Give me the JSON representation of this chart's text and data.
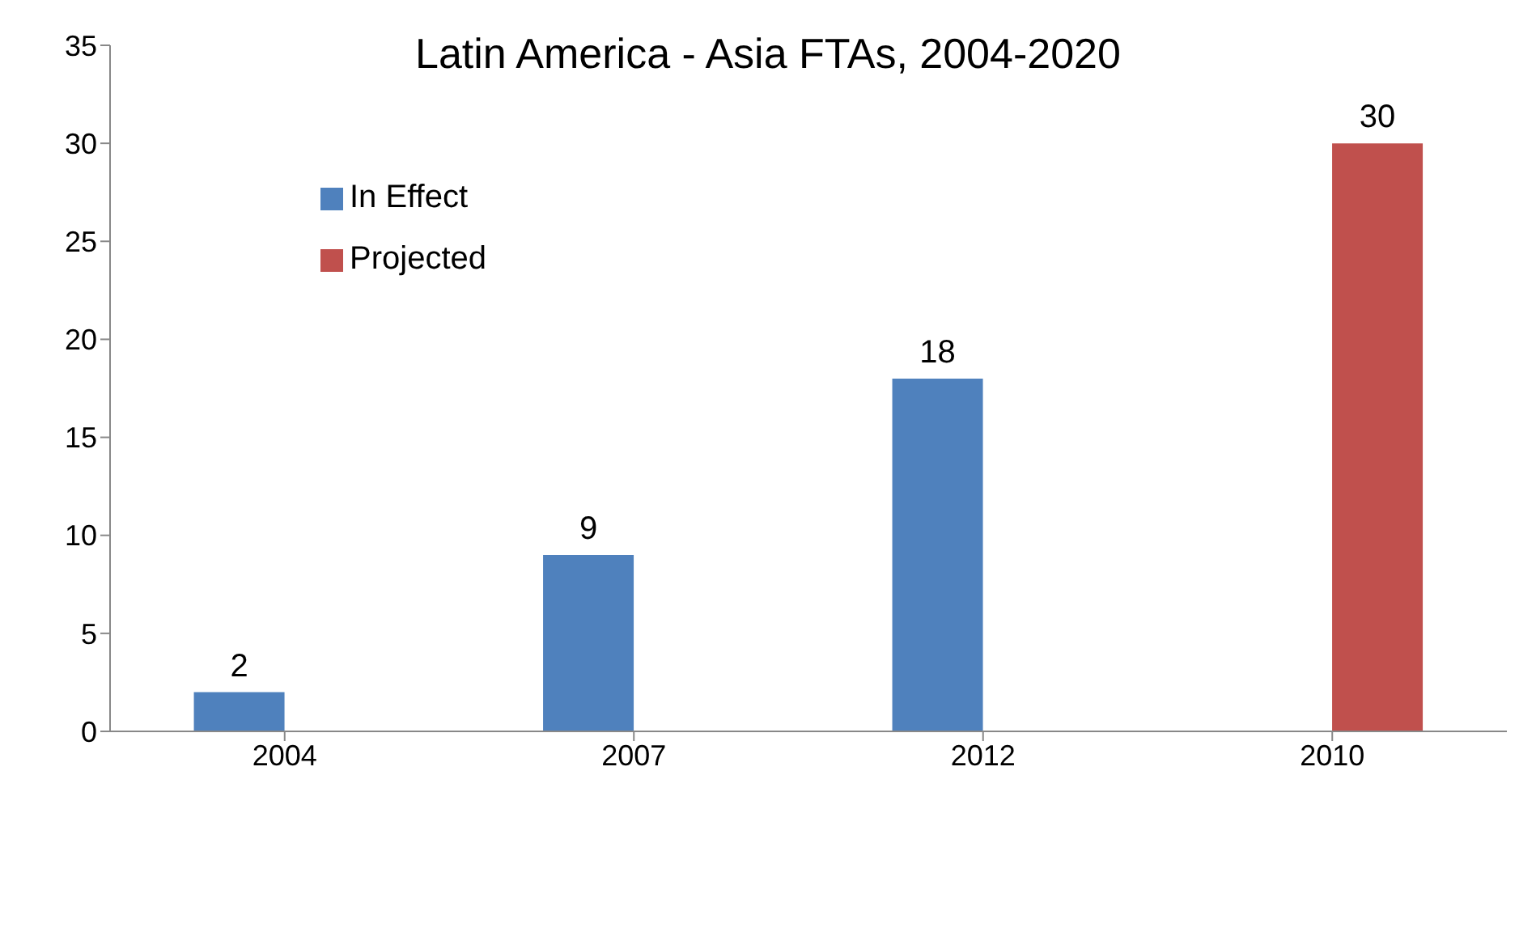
{
  "chart_data": {
    "type": "bar",
    "title": "Latin America - Asia FTAs, 2004-2020",
    "categories": [
      "2004",
      "2007",
      "2012",
      "2010"
    ],
    "series": [
      {
        "name": "In Effect",
        "color": "#4f81bd",
        "values": [
          2,
          9,
          18,
          null
        ]
      },
      {
        "name": "Projected",
        "color": "#c0504d",
        "values": [
          null,
          null,
          null,
          30
        ]
      }
    ],
    "ylim": [
      0,
      35
    ],
    "yticks": [
      0,
      5,
      10,
      15,
      20,
      25,
      30,
      35
    ],
    "grid": false,
    "legend": "top left",
    "data_labels": true
  }
}
